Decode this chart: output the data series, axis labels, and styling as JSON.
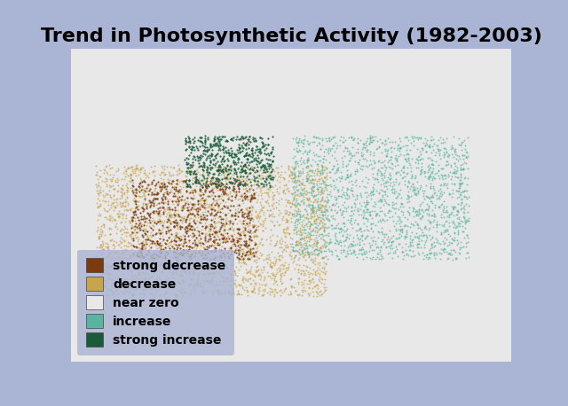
{
  "title": "Trend in Photosynthetic Activity (1982-2003)",
  "title_fontsize": 16,
  "title_fontweight": "bold",
  "background_color": "#aab4d4",
  "legend_items": [
    {
      "label": "strong decrease",
      "color": "#7b3a10"
    },
    {
      "label": "decrease",
      "color": "#c8a44a"
    },
    {
      "label": "near zero",
      "color": "#e8e8e8"
    },
    {
      "label": "increase",
      "color": "#5ab5a0"
    },
    {
      "label": "strong increase",
      "color": "#1a5c3a"
    }
  ],
  "legend_fontsize": 10,
  "legend_fontweight": "bold",
  "ocean_color": "#aab4d4",
  "land_color": "#e8e8e8",
  "fig_width": 6.4,
  "fig_height": 4.58,
  "dpi": 100
}
